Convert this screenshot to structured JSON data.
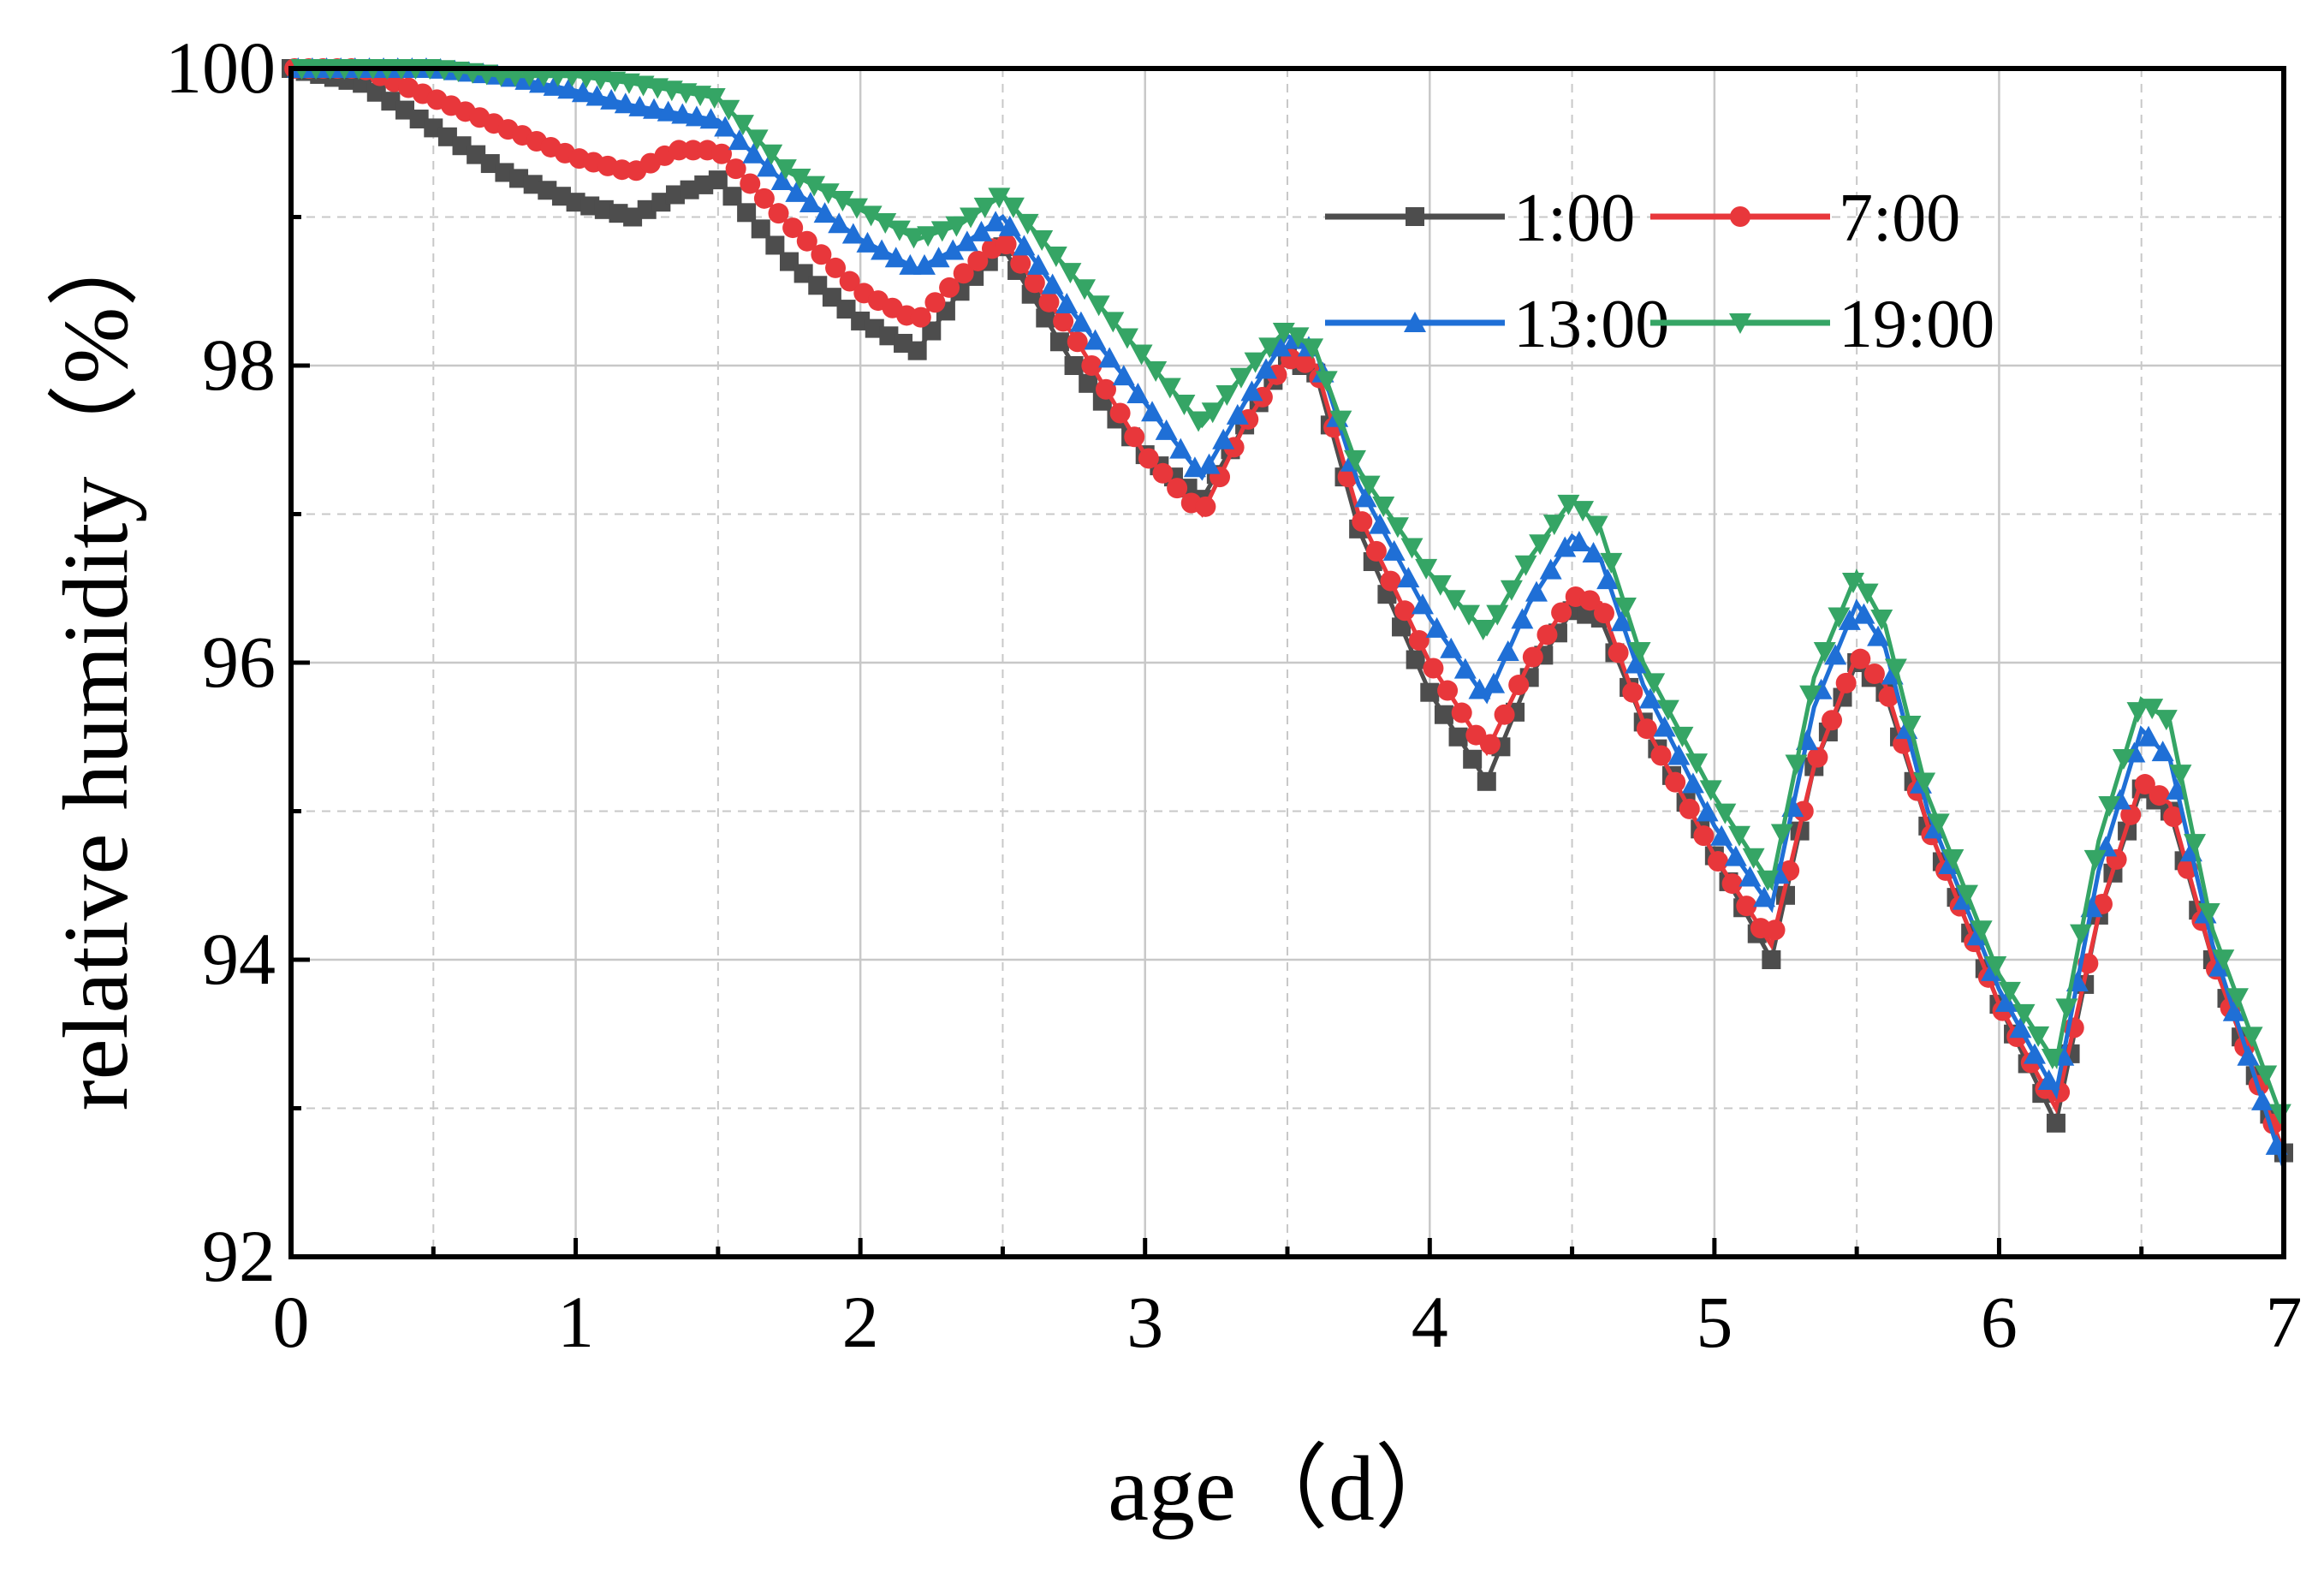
{
  "chart_data": {
    "type": "line",
    "title": "",
    "xlabel": "age（d）",
    "ylabel": "relative humidity（%）",
    "xlim": [
      0,
      7
    ],
    "ylim": [
      92,
      100
    ],
    "xticks": [
      "0",
      "1",
      "2",
      "3",
      "4",
      "5",
      "6",
      "7"
    ],
    "yticks": [
      "92",
      "94",
      "96",
      "98",
      "100"
    ],
    "grid": true,
    "legend_position": "top-right",
    "series": [
      {
        "name": "1:00",
        "color": "#4d4d4d",
        "marker": "square",
        "points": [
          [
            0,
            100.0
          ],
          [
            0.25,
            99.9
          ],
          [
            0.5,
            99.6
          ],
          [
            0.75,
            99.3
          ],
          [
            1.0,
            99.1
          ],
          [
            1.2,
            99.0
          ],
          [
            1.35,
            99.15
          ],
          [
            1.5,
            99.25
          ],
          [
            1.75,
            98.7
          ],
          [
            2.0,
            98.3
          ],
          [
            2.2,
            98.1
          ],
          [
            2.35,
            98.5
          ],
          [
            2.5,
            98.8
          ],
          [
            2.75,
            98.0
          ],
          [
            3.0,
            97.4
          ],
          [
            3.2,
            97.1
          ],
          [
            3.35,
            97.6
          ],
          [
            3.5,
            98.05
          ],
          [
            3.6,
            97.95
          ],
          [
            3.75,
            96.9
          ],
          [
            4.0,
            95.8
          ],
          [
            4.2,
            95.2
          ],
          [
            4.35,
            95.9
          ],
          [
            4.5,
            96.35
          ],
          [
            4.6,
            96.3
          ],
          [
            4.75,
            95.6
          ],
          [
            5.0,
            94.7
          ],
          [
            5.2,
            94.0
          ],
          [
            5.35,
            95.3
          ],
          [
            5.5,
            96.0
          ],
          [
            5.6,
            95.8
          ],
          [
            5.75,
            94.9
          ],
          [
            6.0,
            93.7
          ],
          [
            6.2,
            92.9
          ],
          [
            6.35,
            94.3
          ],
          [
            6.5,
            95.15
          ],
          [
            6.6,
            95.0
          ],
          [
            6.75,
            94.0
          ],
          [
            7.0,
            92.7
          ]
        ]
      },
      {
        "name": "7:00",
        "color": "#e8373b",
        "marker": "circle",
        "points": [
          [
            0,
            100.0
          ],
          [
            0.25,
            100.0
          ],
          [
            0.5,
            99.8
          ],
          [
            0.75,
            99.6
          ],
          [
            1.0,
            99.4
          ],
          [
            1.2,
            99.3
          ],
          [
            1.35,
            99.45
          ],
          [
            1.5,
            99.45
          ],
          [
            1.75,
            98.95
          ],
          [
            2.0,
            98.5
          ],
          [
            2.2,
            98.3
          ],
          [
            2.35,
            98.6
          ],
          [
            2.5,
            98.85
          ],
          [
            2.75,
            98.2
          ],
          [
            3.0,
            97.4
          ],
          [
            3.2,
            97.0
          ],
          [
            3.35,
            97.6
          ],
          [
            3.5,
            98.05
          ],
          [
            3.6,
            98.0
          ],
          [
            3.75,
            97.0
          ],
          [
            4.0,
            96.0
          ],
          [
            4.2,
            95.4
          ],
          [
            4.35,
            96.0
          ],
          [
            4.5,
            96.45
          ],
          [
            4.6,
            96.4
          ],
          [
            4.75,
            95.6
          ],
          [
            5.0,
            94.7
          ],
          [
            5.2,
            94.1
          ],
          [
            5.35,
            95.3
          ],
          [
            5.5,
            96.05
          ],
          [
            5.6,
            95.85
          ],
          [
            5.75,
            94.9
          ],
          [
            6.0,
            93.7
          ],
          [
            6.2,
            93.0
          ],
          [
            6.35,
            94.3
          ],
          [
            6.5,
            95.2
          ],
          [
            6.6,
            95.05
          ],
          [
            6.75,
            94.0
          ],
          [
            7.0,
            92.7
          ]
        ]
      },
      {
        "name": "13:00",
        "color": "#1f6fd6",
        "marker": "triangle-up",
        "points": [
          [
            0,
            100.0
          ],
          [
            0.25,
            100.0
          ],
          [
            0.5,
            100.0
          ],
          [
            0.75,
            99.95
          ],
          [
            1.0,
            99.85
          ],
          [
            1.2,
            99.75
          ],
          [
            1.35,
            99.7
          ],
          [
            1.5,
            99.65
          ],
          [
            1.75,
            99.2
          ],
          [
            2.0,
            98.85
          ],
          [
            2.2,
            98.65
          ],
          [
            2.35,
            98.8
          ],
          [
            2.5,
            99.0
          ],
          [
            2.75,
            98.35
          ],
          [
            3.0,
            97.75
          ],
          [
            3.2,
            97.25
          ],
          [
            3.35,
            97.75
          ],
          [
            3.5,
            98.2
          ],
          [
            3.6,
            98.1
          ],
          [
            3.75,
            97.2
          ],
          [
            4.0,
            96.3
          ],
          [
            4.2,
            95.75
          ],
          [
            4.35,
            96.4
          ],
          [
            4.5,
            96.85
          ],
          [
            4.6,
            96.7
          ],
          [
            4.75,
            95.85
          ],
          [
            5.0,
            94.9
          ],
          [
            5.2,
            94.35
          ],
          [
            5.35,
            95.7
          ],
          [
            5.5,
            96.4
          ],
          [
            5.6,
            96.1
          ],
          [
            5.75,
            95.0
          ],
          [
            6.0,
            93.8
          ],
          [
            6.2,
            93.1
          ],
          [
            6.35,
            94.6
          ],
          [
            6.5,
            95.55
          ],
          [
            6.6,
            95.35
          ],
          [
            6.75,
            94.1
          ],
          [
            7.0,
            92.6
          ]
        ]
      },
      {
        "name": "19:00",
        "color": "#35a565",
        "marker": "triangle-down",
        "points": [
          [
            0,
            100.0
          ],
          [
            0.25,
            100.0
          ],
          [
            0.5,
            100.0
          ],
          [
            0.75,
            99.95
          ],
          [
            1.0,
            99.95
          ],
          [
            1.2,
            99.9
          ],
          [
            1.35,
            99.85
          ],
          [
            1.5,
            99.8
          ],
          [
            1.75,
            99.3
          ],
          [
            2.0,
            99.05
          ],
          [
            2.2,
            98.85
          ],
          [
            2.35,
            98.95
          ],
          [
            2.5,
            99.15
          ],
          [
            2.75,
            98.6
          ],
          [
            3.0,
            98.05
          ],
          [
            3.2,
            97.6
          ],
          [
            3.35,
            97.95
          ],
          [
            3.5,
            98.25
          ],
          [
            3.6,
            98.1
          ],
          [
            3.75,
            97.3
          ],
          [
            4.0,
            96.6
          ],
          [
            4.2,
            96.2
          ],
          [
            4.35,
            96.7
          ],
          [
            4.5,
            97.1
          ],
          [
            4.6,
            96.9
          ],
          [
            4.75,
            96.0
          ],
          [
            5.0,
            95.1
          ],
          [
            5.2,
            94.5
          ],
          [
            5.35,
            95.9
          ],
          [
            5.5,
            96.6
          ],
          [
            5.6,
            96.25
          ],
          [
            5.75,
            95.1
          ],
          [
            6.0,
            93.9
          ],
          [
            6.2,
            93.3
          ],
          [
            6.35,
            94.8
          ],
          [
            6.5,
            95.75
          ],
          [
            6.6,
            95.6
          ],
          [
            6.75,
            94.2
          ],
          [
            7.0,
            92.9
          ]
        ]
      }
    ]
  }
}
